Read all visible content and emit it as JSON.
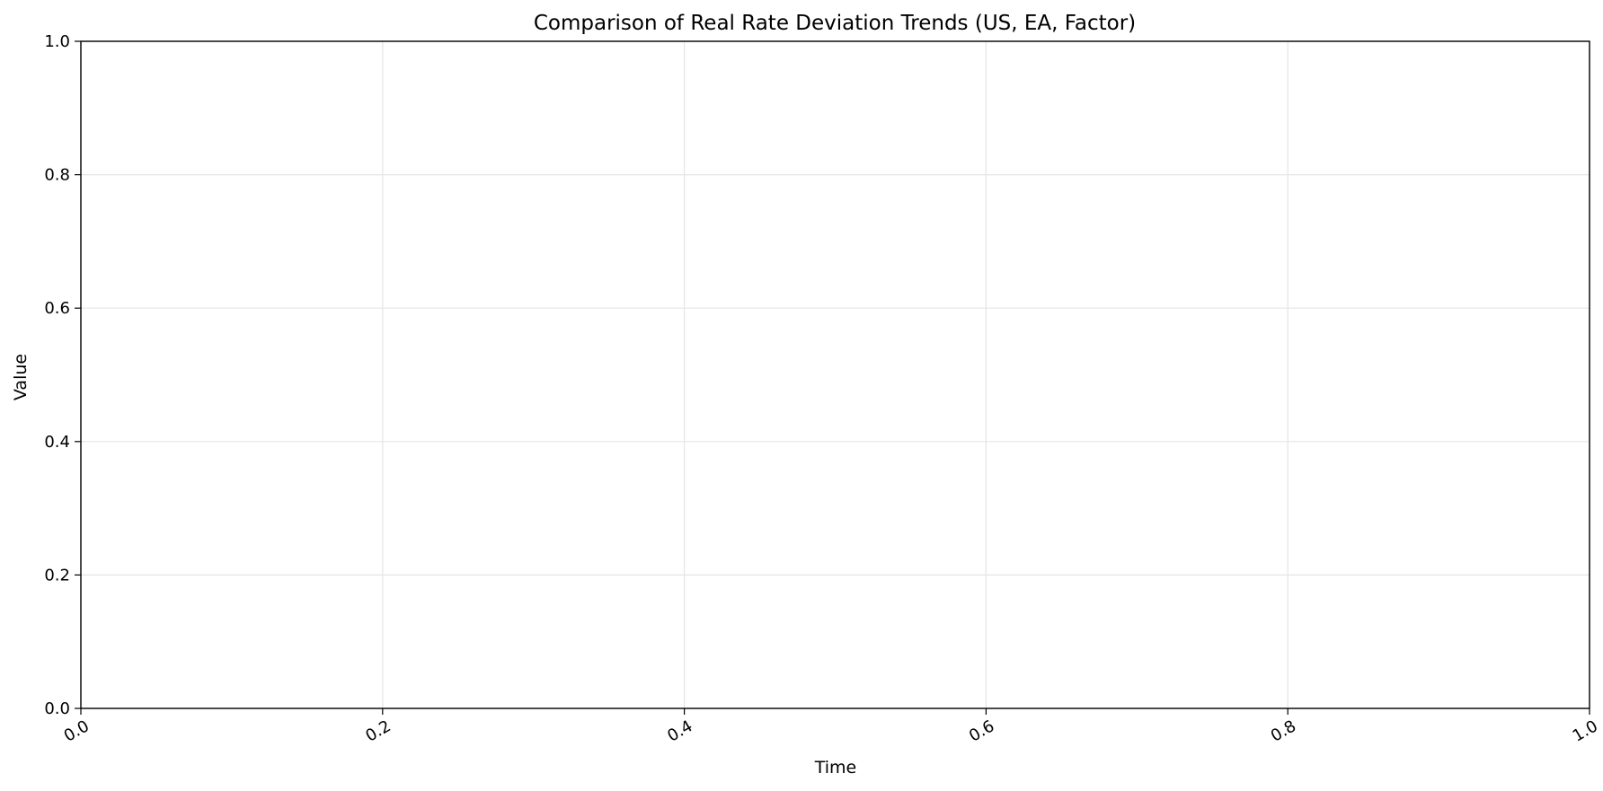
{
  "chart_data": {
    "type": "line",
    "title": "Comparison of Real Rate Deviation Trends (US, EA, Factor)",
    "xlabel": "Time",
    "ylabel": "Value",
    "xlim": [
      0.0,
      1.0
    ],
    "ylim": [
      0.0,
      1.0
    ],
    "x_ticks": [
      "0.0",
      "0.2",
      "0.4",
      "0.6",
      "0.8",
      "1.0"
    ],
    "y_ticks": [
      "0.0",
      "0.2",
      "0.4",
      "0.6",
      "0.8",
      "1.0"
    ],
    "grid": true,
    "series": []
  },
  "colors": {
    "grid": "#e5e5e5",
    "axis": "#000000",
    "background": "#ffffff"
  }
}
